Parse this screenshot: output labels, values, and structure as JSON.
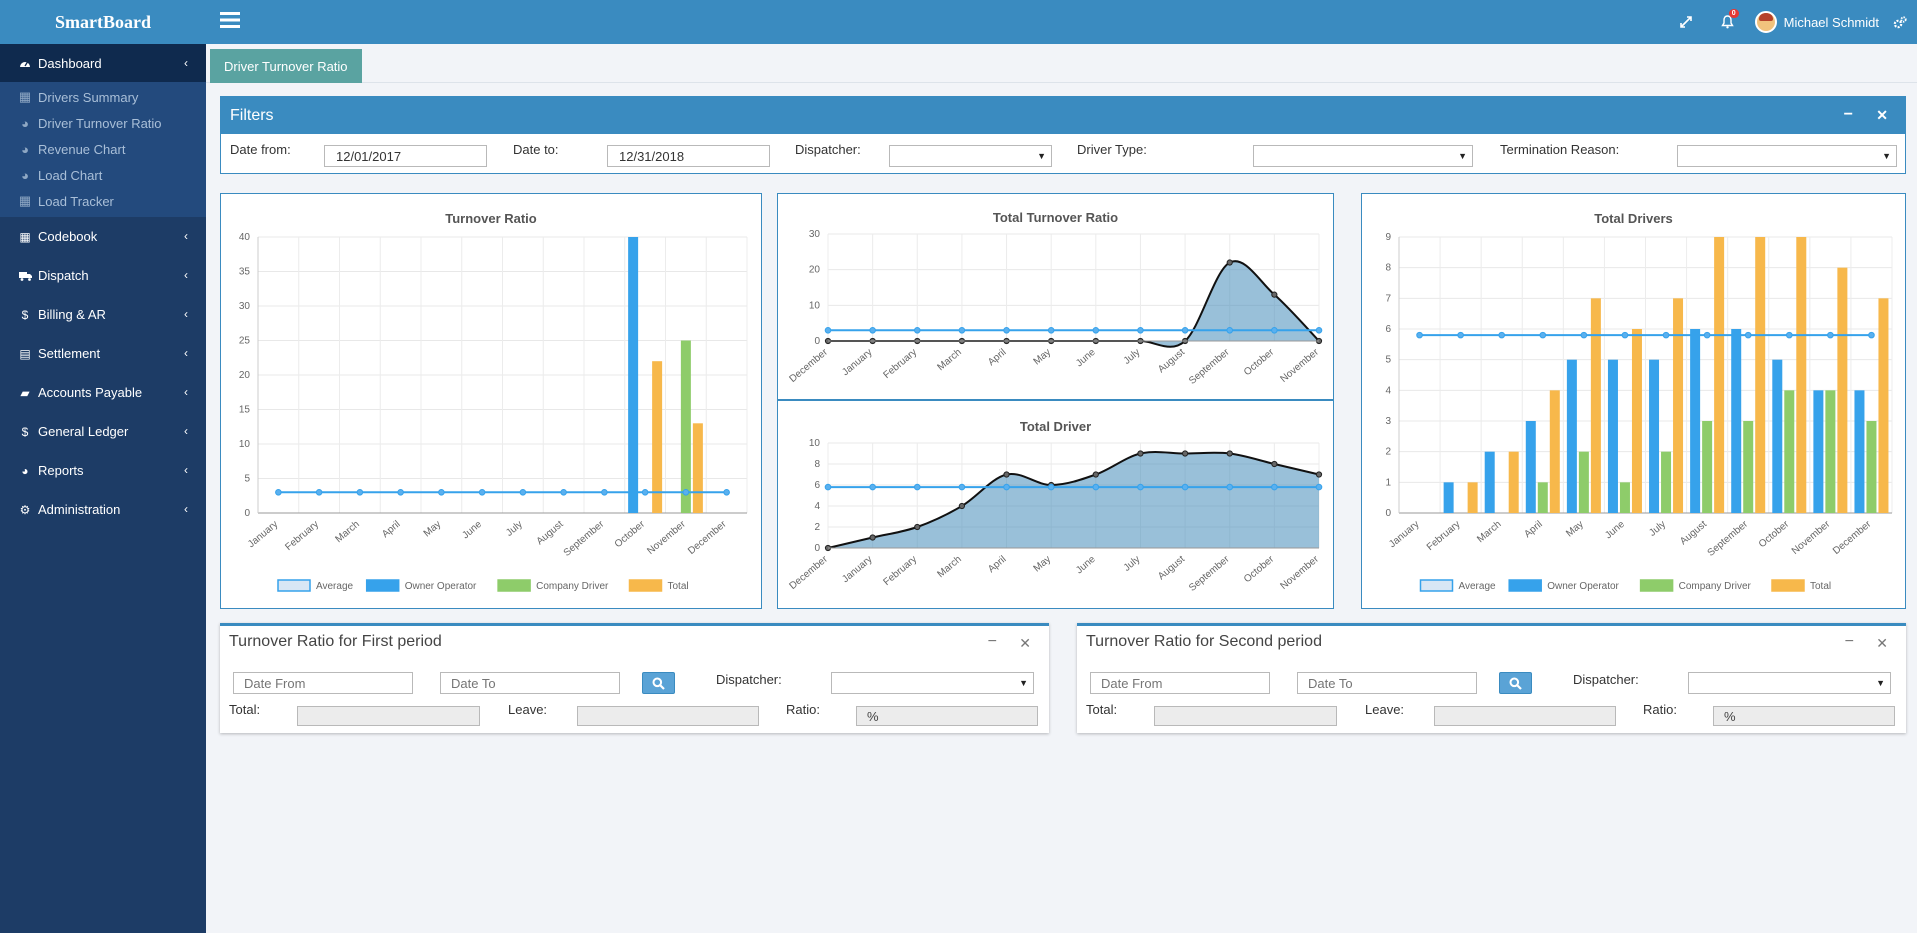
{
  "brand": "SmartBoard",
  "user": {
    "name": "Michael Schmidt",
    "notifications": "0"
  },
  "sidebar": {
    "dashboard": {
      "label": "Dashboard",
      "icon": "dashboard-icon"
    },
    "subitems": [
      {
        "label": "Drivers Summary",
        "icon": "grid-icon"
      },
      {
        "label": "Driver Turnover Ratio",
        "icon": "pie-chart-icon"
      },
      {
        "label": "Revenue Chart",
        "icon": "pie-chart-icon"
      },
      {
        "label": "Load Chart",
        "icon": "pie-chart-icon"
      },
      {
        "label": "Load Tracker",
        "icon": "grid-icon"
      }
    ],
    "items": [
      {
        "label": "Codebook",
        "icon": "th-icon"
      },
      {
        "label": "Dispatch",
        "icon": "truck-icon"
      },
      {
        "label": "Billing & AR",
        "icon": "dollar-icon"
      },
      {
        "label": "Settlement",
        "icon": "calculator-icon"
      },
      {
        "label": "Accounts Payable",
        "icon": "book-icon"
      },
      {
        "label": "General Ledger",
        "icon": "dollar-icon"
      },
      {
        "label": "Reports",
        "icon": "pie-chart-icon"
      },
      {
        "label": "Administration",
        "icon": "cogs-icon"
      }
    ]
  },
  "tab": {
    "label": "Driver Turnover Ratio"
  },
  "filters": {
    "title": "Filters",
    "date_from_label": "Date from:",
    "date_from": "12/01/2017",
    "date_to_label": "Date to:",
    "date_to": "12/31/2018",
    "dispatcher_label": "Dispatcher:",
    "dispatcher": "",
    "driver_type_label": "Driver Type:",
    "driver_type": "",
    "termination_label": "Termination Reason:",
    "termination": ""
  },
  "chart_data": [
    {
      "type": "bar",
      "title": "Turnover Ratio",
      "categories": [
        "January",
        "February",
        "March",
        "April",
        "May",
        "June",
        "July",
        "August",
        "September",
        "October",
        "November",
        "December"
      ],
      "ylim": [
        0,
        40
      ],
      "yticks": [
        0,
        5,
        10,
        15,
        20,
        25,
        30,
        35,
        40
      ],
      "series": [
        {
          "name": "Average",
          "type": "line",
          "color": "#36a2eb",
          "values": [
            3,
            3,
            3,
            3,
            3,
            3,
            3,
            3,
            3,
            3,
            3,
            3
          ]
        },
        {
          "name": "Owner Operator",
          "color": "#36a2eb",
          "values": [
            0,
            0,
            0,
            0,
            0,
            0,
            0,
            0,
            0,
            40,
            0,
            0
          ]
        },
        {
          "name": "Company Driver",
          "color": "#8ecc6a",
          "values": [
            0,
            0,
            0,
            0,
            0,
            0,
            0,
            0,
            0,
            0,
            25,
            0
          ]
        },
        {
          "name": "Total",
          "color": "#f7b84b",
          "values": [
            0,
            0,
            0,
            0,
            0,
            0,
            0,
            0,
            0,
            22,
            13,
            0
          ]
        }
      ]
    },
    {
      "type": "area",
      "title": "Total Turnover Ratio",
      "categories": [
        "December",
        "January",
        "February",
        "March",
        "April",
        "May",
        "June",
        "July",
        "August",
        "September",
        "October",
        "November"
      ],
      "ylim": [
        0,
        30
      ],
      "yticks": [
        0,
        10,
        20,
        30
      ],
      "series": [
        {
          "name": "Total",
          "values": [
            0,
            0,
            0,
            0,
            0,
            0,
            0,
            0,
            0,
            22,
            13,
            0
          ]
        },
        {
          "name": "Average",
          "values": [
            3,
            3,
            3,
            3,
            3,
            3,
            3,
            3,
            3,
            3,
            3,
            3
          ]
        }
      ]
    },
    {
      "type": "area",
      "title": "Total Driver",
      "categories": [
        "December",
        "January",
        "February",
        "March",
        "April",
        "May",
        "June",
        "July",
        "August",
        "September",
        "October",
        "November"
      ],
      "ylim": [
        0,
        10
      ],
      "yticks": [
        0,
        2,
        4,
        6,
        8,
        10
      ],
      "series": [
        {
          "name": "Total",
          "values": [
            0,
            1,
            2,
            4,
            7,
            6,
            7,
            9,
            9,
            9,
            8,
            7
          ]
        },
        {
          "name": "Average",
          "values": [
            5.8,
            5.8,
            5.8,
            5.8,
            5.8,
            5.8,
            5.8,
            5.8,
            5.8,
            5.8,
            5.8,
            5.8
          ]
        }
      ]
    },
    {
      "type": "bar",
      "title": "Total Drivers",
      "categories": [
        "January",
        "February",
        "March",
        "April",
        "May",
        "June",
        "July",
        "August",
        "September",
        "October",
        "November",
        "December"
      ],
      "ylim": [
        0,
        9
      ],
      "yticks": [
        0,
        1,
        2,
        3,
        4,
        5,
        6,
        7,
        8,
        9
      ],
      "series": [
        {
          "name": "Average",
          "type": "line",
          "color": "#36a2eb",
          "values": [
            5.8,
            5.8,
            5.8,
            5.8,
            5.8,
            5.8,
            5.8,
            5.8,
            5.8,
            5.8,
            5.8,
            5.8
          ]
        },
        {
          "name": "Owner Operator",
          "color": "#36a2eb",
          "values": [
            0,
            1,
            2,
            3,
            5,
            5,
            5,
            6,
            6,
            5,
            4,
            4
          ]
        },
        {
          "name": "Company Driver",
          "color": "#8ecc6a",
          "values": [
            0,
            0,
            0,
            1,
            2,
            1,
            2,
            3,
            3,
            4,
            4,
            3
          ]
        },
        {
          "name": "Total",
          "color": "#f7b84b",
          "values": [
            0,
            1,
            2,
            4,
            7,
            6,
            7,
            9,
            9,
            9,
            8,
            7
          ]
        }
      ]
    }
  ],
  "period1": {
    "title": "Turnover Ratio for First period",
    "date_from_ph": "Date From",
    "date_to_ph": "Date To",
    "dispatcher_label": "Dispatcher:",
    "total_label": "Total:",
    "leave_label": "Leave:",
    "ratio_label": "Ratio:",
    "ratio_value": "%"
  },
  "period2": {
    "title": "Turnover Ratio for Second period",
    "date_from_ph": "Date From",
    "date_to_ph": "Date To",
    "dispatcher_label": "Dispatcher:",
    "total_label": "Total:",
    "leave_label": "Leave:",
    "ratio_label": "Ratio:",
    "ratio_value": "%"
  }
}
